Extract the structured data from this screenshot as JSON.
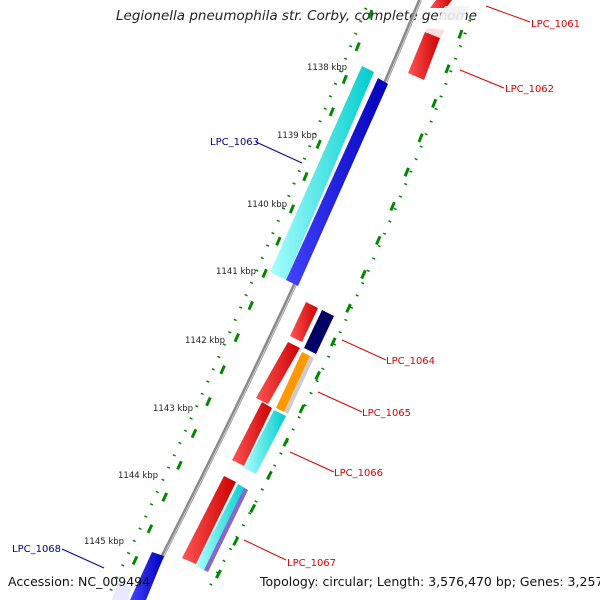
{
  "title": "Legionella pneumophila str. Corby, complete genome",
  "accession": "Accession: NC_009494",
  "summary": "Topology: circular; Length: 3,576,470 bp; Genes: 3,257",
  "ticks": [
    "1138 kbp",
    "1139 kbp",
    "1140 kbp",
    "1141 kbp",
    "1142 kbp",
    "1143 kbp",
    "1144 kbp",
    "1145 kbp"
  ],
  "genes": [
    {
      "label": "LPC_1061",
      "color": "#dd0000"
    },
    {
      "label": "LPC_1062",
      "color": "#dd0000"
    },
    {
      "label": "LPC_1063",
      "color": "#000099"
    },
    {
      "label": "LPC_1064",
      "color": "#dd0000"
    },
    {
      "label": "LPC_1065",
      "color": "#dd0000"
    },
    {
      "label": "LPC_1066",
      "color": "#dd0000"
    },
    {
      "label": "LPC_1067",
      "color": "#dd0000"
    },
    {
      "label": "LPC_1068",
      "color": "#000099"
    }
  ],
  "colors": {
    "forward_gene": "#ff0000",
    "reverse_gene": "#0000ee",
    "cog_cyan": "#00e5e5",
    "cog_navy": "#000066",
    "cog_orange": "#ff9900",
    "cog_purple": "#8866cc",
    "backbone": "#8a8a8a",
    "gc_dots": "#008800"
  }
}
